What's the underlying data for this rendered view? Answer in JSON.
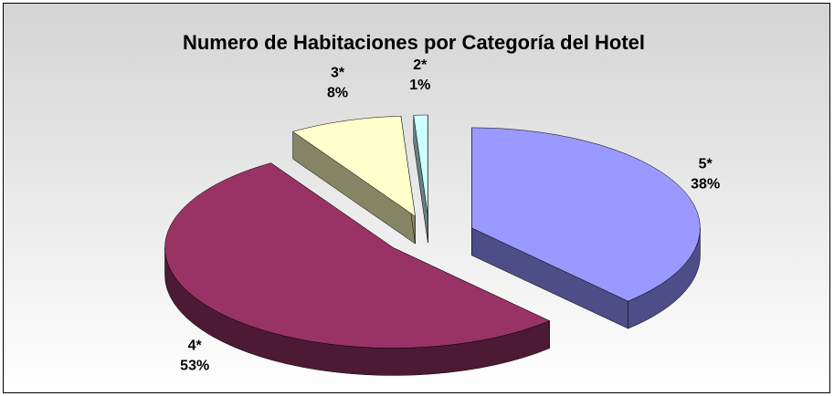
{
  "chart_data": {
    "type": "pie3d",
    "title": "Numero de Habitaciones por Categoría del Hotel",
    "categories": [
      "5*",
      "4*",
      "3*",
      "2*"
    ],
    "values": [
      38,
      53,
      8,
      1
    ],
    "value_labels": [
      "38%",
      "53%",
      "8%",
      "1%"
    ],
    "colors": [
      "#9999ff",
      "#993366",
      "#ffffcc",
      "#ccffff"
    ],
    "side_colors": [
      "#4d4d88",
      "#4d1a33",
      "#858566",
      "#668080"
    ]
  }
}
